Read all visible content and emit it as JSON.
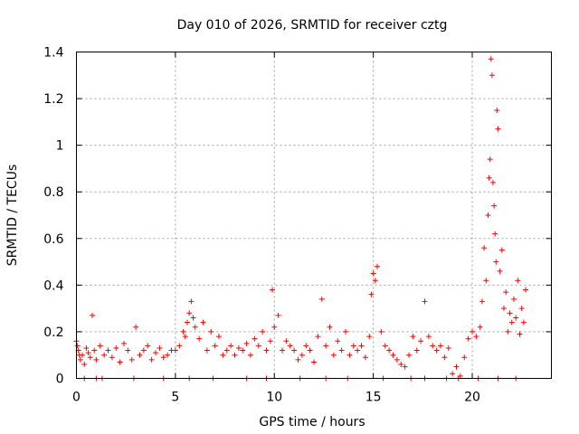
{
  "chart_data": {
    "type": "scatter",
    "title": "Day 010 of 2026, SRMTID for receiver cztg",
    "xlabel": "GPS time / hours",
    "ylabel": "SRMTID / TECUs",
    "xlim": [
      0,
      24
    ],
    "ylim": [
      0,
      1.4
    ],
    "xticks": [
      0,
      5,
      10,
      15,
      20
    ],
    "xtick_labels": [
      "0",
      "5",
      "10",
      "15",
      "20"
    ],
    "yticks": [
      0,
      0.2,
      0.4,
      0.6,
      0.8,
      1.0,
      1.2,
      1.4
    ],
    "ytick_labels": [
      "0",
      "0.2",
      "0.4",
      "0.6",
      "0.8",
      "1",
      "1.2",
      "1.4"
    ],
    "grid": true,
    "marker": "+",
    "marker_color": "#ff0000",
    "series": [
      {
        "name": "SRMTID",
        "x": [
          0.0,
          0.05,
          0.1,
          0.15,
          0.2,
          0.3,
          0.4,
          0.5,
          0.6,
          0.7,
          0.8,
          0.9,
          1.0,
          1.2,
          1.4,
          1.6,
          1.8,
          2.0,
          2.2,
          2.4,
          2.6,
          2.8,
          3.0,
          3.2,
          3.4,
          3.6,
          3.8,
          4.0,
          4.2,
          4.4,
          4.6,
          4.8,
          5.0,
          5.2,
          5.4,
          5.5,
          5.6,
          5.7,
          5.8,
          5.9,
          6.0,
          6.2,
          6.4,
          6.6,
          6.8,
          7.0,
          7.2,
          7.4,
          7.6,
          7.8,
          8.0,
          8.2,
          8.4,
          8.6,
          8.8,
          9.0,
          9.2,
          9.4,
          9.6,
          9.8,
          9.9,
          10.0,
          10.2,
          10.4,
          10.6,
          10.8,
          11.0,
          11.2,
          11.4,
          11.6,
          11.8,
          12.0,
          12.2,
          12.4,
          12.6,
          12.8,
          13.0,
          13.2,
          13.4,
          13.6,
          13.8,
          14.0,
          14.2,
          14.4,
          14.6,
          14.8,
          14.9,
          15.0,
          15.1,
          15.2,
          15.4,
          15.6,
          15.8,
          16.0,
          16.2,
          16.4,
          16.6,
          16.8,
          17.0,
          17.2,
          17.4,
          17.6,
          17.8,
          18.0,
          18.2,
          18.4,
          18.6,
          18.8,
          19.0,
          19.2,
          19.4,
          19.6,
          19.8,
          20.0,
          20.2,
          20.4,
          20.5,
          20.6,
          20.7,
          20.8,
          20.85,
          20.9,
          20.95,
          21.0,
          21.05,
          21.1,
          21.15,
          21.2,
          21.25,
          21.3,
          21.4,
          21.5,
          21.6,
          21.7,
          21.8,
          21.9,
          22.0,
          22.1,
          22.2,
          22.3,
          22.4,
          22.5,
          22.6,
          22.7,
          0.4,
          1.0,
          1.3,
          2.9,
          4.4,
          5.7,
          6.9,
          8.6,
          9.6,
          11.3,
          12.6,
          13.7,
          15.5,
          16.9,
          17.6,
          18.7,
          19.3,
          20.3,
          21.3,
          22.2
        ],
        "y": [
          0.16,
          0.14,
          0.12,
          0.1,
          0.08,
          0.1,
          0.06,
          0.13,
          0.11,
          0.09,
          0.27,
          0.12,
          0.08,
          0.14,
          0.1,
          0.12,
          0.09,
          0.13,
          0.07,
          0.15,
          0.12,
          0.08,
          0.22,
          0.1,
          0.12,
          0.14,
          0.08,
          0.11,
          0.13,
          0.09,
          0.1,
          0.12,
          0.12,
          0.14,
          0.2,
          0.18,
          0.24,
          0.28,
          0.33,
          0.26,
          0.22,
          0.17,
          0.24,
          0.12,
          0.2,
          0.14,
          0.18,
          0.1,
          0.12,
          0.14,
          0.1,
          0.13,
          0.12,
          0.15,
          0.1,
          0.17,
          0.14,
          0.2,
          0.12,
          0.16,
          0.38,
          0.22,
          0.27,
          0.12,
          0.16,
          0.14,
          0.12,
          0.08,
          0.1,
          0.14,
          0.12,
          0.07,
          0.18,
          0.34,
          0.14,
          0.22,
          0.1,
          0.16,
          0.12,
          0.2,
          0.1,
          0.14,
          0.12,
          0.14,
          0.09,
          0.18,
          0.36,
          0.45,
          0.42,
          0.48,
          0.2,
          0.14,
          0.12,
          0.1,
          0.08,
          0.06,
          0.05,
          0.1,
          0.18,
          0.12,
          0.16,
          0.33,
          0.18,
          0.14,
          0.12,
          0.14,
          0.09,
          0.13,
          0.02,
          0.05,
          0.01,
          0.09,
          0.17,
          0.2,
          0.18,
          0.22,
          0.33,
          0.56,
          0.42,
          0.7,
          0.86,
          0.94,
          1.37,
          1.3,
          0.84,
          0.74,
          0.62,
          0.5,
          1.15,
          1.07,
          0.46,
          0.55,
          0.3,
          0.37,
          0.2,
          0.28,
          0.24,
          0.34,
          0.26,
          0.42,
          0.19,
          0.3,
          0.24,
          0.38,
          0.0,
          0.0,
          0.0,
          0.0,
          0.0,
          0.0,
          0.0,
          0.0,
          0.0,
          0.0,
          0.0,
          0.0,
          0.0,
          0.0,
          0.0,
          0.0,
          0.0,
          0.0,
          0.0,
          0.0
        ]
      }
    ]
  }
}
